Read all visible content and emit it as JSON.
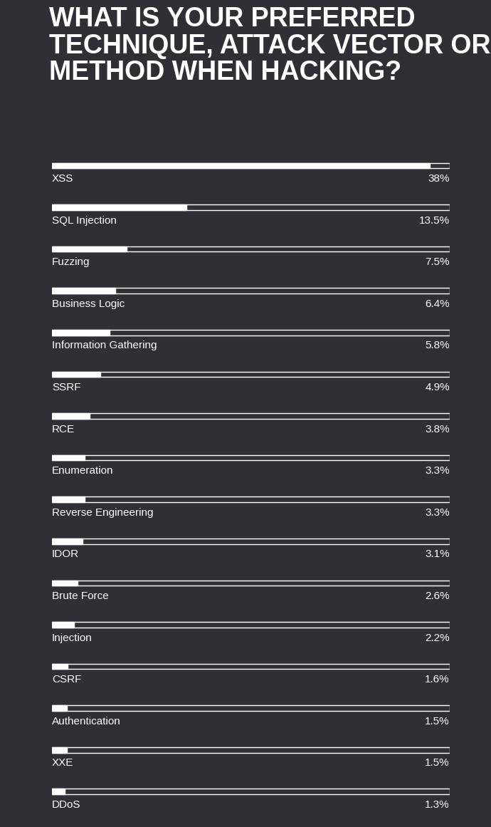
{
  "chart_data": {
    "type": "bar",
    "orientation": "horizontal",
    "title": "WHAT IS YOUR PREFERRED TECHNIQUE, ATTACK VECTOR OR METHOD WHEN HACKING?",
    "categories": [
      "XSS",
      "SQL Injection",
      "Fuzzing",
      "Business Logic",
      "Information Gathering",
      "SSRF",
      "RCE",
      "Enumeration",
      "Reverse Engineering",
      "IDOR",
      "Brute Force",
      "Injection",
      "CSRF",
      "Authentication",
      "XXE",
      "DDoS"
    ],
    "values": [
      38,
      13.5,
      7.5,
      6.4,
      5.8,
      4.9,
      3.8,
      3.3,
      3.3,
      3.1,
      2.6,
      2.2,
      1.6,
      1.5,
      1.5,
      1.3
    ],
    "value_labels": [
      "38%",
      "13.5%",
      "7.5%",
      "6.4%",
      "5.8%",
      "4.9%",
      "3.8%",
      "3.3%",
      "3.3%",
      "3.1%",
      "2.6%",
      "2.2%",
      "1.6%",
      "1.5%",
      "1.5%",
      "1.3%"
    ],
    "xlim": [
      0,
      40
    ],
    "color": "#ffffff",
    "data_labels": true,
    "tick_labels": false,
    "grid": false
  }
}
